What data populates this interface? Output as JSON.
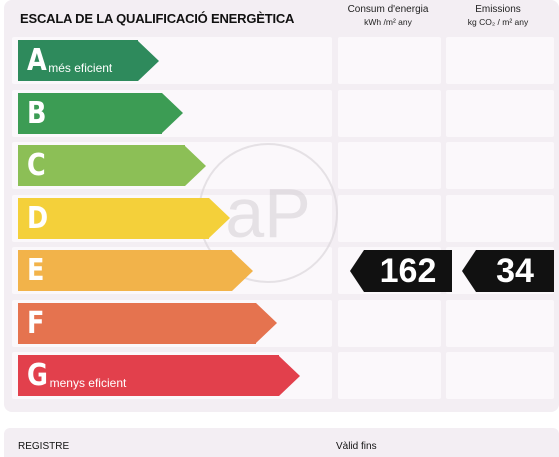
{
  "header": {
    "title": "ESCALA DE LA QUALIFICACIÓ ENERGÈTICA",
    "energy_col": {
      "line1": "Consum d'energia",
      "line2": "kWh /m² any"
    },
    "emissions_col": {
      "line1": "Emissions",
      "line2": "kg CO₂ / m² any"
    }
  },
  "ratings": [
    {
      "letter": "A",
      "label": "més eficient",
      "color": "#2e8a5c"
    },
    {
      "letter": "B",
      "label": "",
      "color": "#3c9c54"
    },
    {
      "letter": "C",
      "label": "",
      "color": "#8cbf56"
    },
    {
      "letter": "D",
      "label": "",
      "color": "#f4d03a"
    },
    {
      "letter": "E",
      "label": "",
      "color": "#f2b34a"
    },
    {
      "letter": "F",
      "label": "",
      "color": "#e5734f"
    },
    {
      "letter": "G",
      "label": "menys eficient",
      "color": "#e2404c"
    }
  ],
  "result": {
    "rating": "E",
    "energy_value": "162",
    "emissions_value": "34"
  },
  "watermark": {
    "text": "aP"
  },
  "footer": {
    "register_label": "REGISTRE",
    "valid_label": "Vàlid fins"
  }
}
